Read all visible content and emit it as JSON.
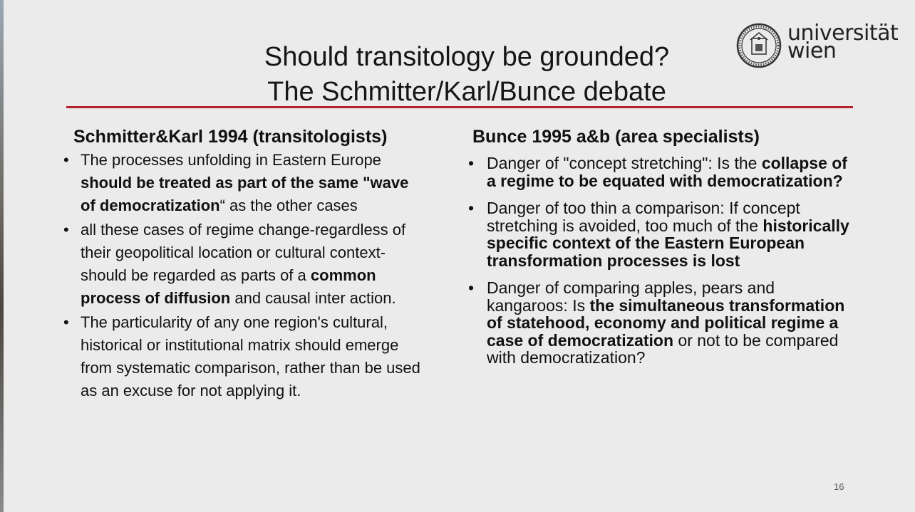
{
  "slide": {
    "title_line1": "Should transitology be grounded?",
    "title_line2": "The Schmitter/Karl/Bunce debate",
    "logo": {
      "line1": "universität",
      "line2": "wien",
      "icon": "university-seal-icon"
    },
    "accent_color": "#b3232b",
    "page_number": "16"
  },
  "left": {
    "heading": "Schmitter&Karl 1994 (transitologists)",
    "bullets": [
      [
        {
          "t": "The processes unfolding in Eastern Europe "
        },
        {
          "t": "should be treated as part of the same \"wave of democratization",
          "b": true
        },
        {
          "t": "“ as the other cases"
        }
      ],
      [
        {
          "t": "all these cases of regime change-regardless of their geopolitical location or cultural context-should be regarded as parts of a "
        },
        {
          "t": "common process of diffusion",
          "b": true
        },
        {
          "t": " and causal inter action."
        }
      ],
      [
        {
          "t": "The particularity of any one region's cultural, historical or institutional matrix should emerge from systematic comparison, rather than be used as an excuse for not applying it."
        }
      ]
    ]
  },
  "right": {
    "heading": "Bunce 1995 a&b (area specialists)",
    "bullets": [
      [
        {
          "t": "Danger of \"concept stretching\": Is the "
        },
        {
          "t": "collapse of a regime to be equated with democratization?",
          "b": true
        }
      ],
      [
        {
          "t": "Danger of too thin a comparison: If concept stretching is avoided, too much of the "
        },
        {
          "t": "historically specific context of the Eastern European transformation processes is lost",
          "b": true
        }
      ],
      [
        {
          "t": "Danger of comparing apples, pears and kangaroos: Is "
        },
        {
          "t": "the simultaneous transformation of statehood, economy and political regime a case of democratization",
          "b": true
        },
        {
          "t": " or not to be compared with democratization?"
        }
      ]
    ]
  }
}
